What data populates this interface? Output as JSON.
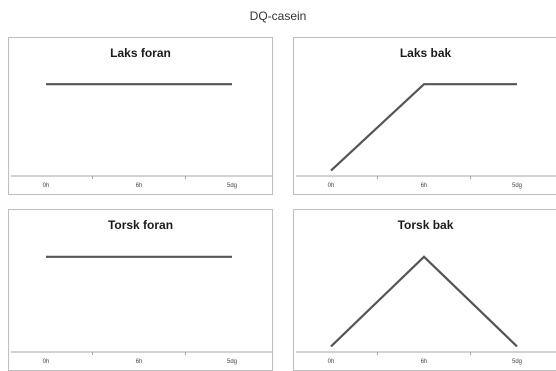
{
  "title": "DQ-casein",
  "colors": {
    "line": "#555555",
    "axis": "#a6a6a6",
    "border": "#bfbfbf"
  },
  "chart_data": [
    {
      "type": "line",
      "title": "Laks foran",
      "categories": [
        "0h",
        "6h",
        "5dg"
      ],
      "values": [
        0.85,
        0.85,
        0.85
      ],
      "ylim": [
        0,
        1
      ],
      "grid": false
    },
    {
      "type": "line",
      "title": "Laks bak",
      "categories": [
        "0h",
        "6h",
        "5dg"
      ],
      "values": [
        0.05,
        0.85,
        0.85
      ],
      "ylim": [
        0,
        1
      ],
      "grid": false
    },
    {
      "type": "line",
      "title": "Torsk foran",
      "categories": [
        "0h",
        "6h",
        "5dg"
      ],
      "values": [
        0.85,
        0.85,
        0.85
      ],
      "ylim": [
        0,
        1
      ],
      "grid": false
    },
    {
      "type": "line",
      "title": "Torsk bak",
      "categories": [
        "0h",
        "6h",
        "5dg"
      ],
      "values": [
        0.05,
        0.85,
        0.05
      ],
      "ylim": [
        0,
        1
      ],
      "grid": false
    }
  ]
}
